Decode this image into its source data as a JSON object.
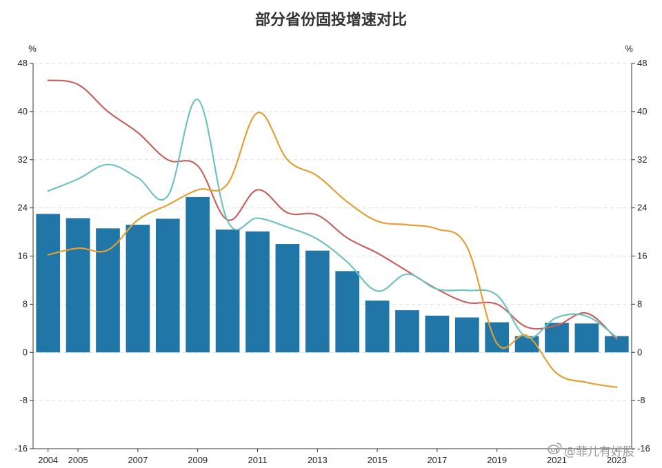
{
  "chart_data": {
    "type": "bar",
    "title": "部分省份固投增速对比",
    "y_unit_left": "%",
    "y_unit_right": "%",
    "ylim": [
      -16,
      48
    ],
    "yticks": [
      -16,
      -8,
      0,
      8,
      16,
      24,
      32,
      40,
      48
    ],
    "grid": true,
    "x": [
      2004,
      2005,
      2006,
      2007,
      2008,
      2009,
      2010,
      2011,
      2012,
      2013,
      2014,
      2015,
      2016,
      2017,
      2018,
      2019,
      2020,
      2021,
      2022,
      2023
    ],
    "x_tick_labels": [
      "2004",
      "2005",
      "2007",
      "2009",
      "2011",
      "2013",
      "2015",
      "2017",
      "2019",
      "2021",
      "2023"
    ],
    "series": [
      {
        "type": "bar",
        "color": "#2176a8",
        "values": [
          23.0,
          22.3,
          20.6,
          21.2,
          22.2,
          25.8,
          20.4,
          20.1,
          18.0,
          16.9,
          13.5,
          8.6,
          7.0,
          6.1,
          5.8,
          5.0,
          2.7,
          4.9,
          4.8,
          2.7
        ]
      },
      {
        "type": "line",
        "color": "#c8625e",
        "values": [
          45.2,
          44.5,
          40.0,
          36.5,
          32.0,
          31.0,
          22.0,
          27.0,
          23.2,
          22.8,
          19.0,
          16.5,
          13.5,
          10.5,
          8.3,
          8.0,
          4.2,
          4.5,
          6.5,
          2.2
        ]
      },
      {
        "type": "line",
        "color": "#6ec2c0",
        "values": [
          26.8,
          28.8,
          31.2,
          29.0,
          26.0,
          42.0,
          21.8,
          22.3,
          20.8,
          18.8,
          15.0,
          10.2,
          13.0,
          10.5,
          10.3,
          9.5,
          2.5,
          5.8,
          6.0,
          2.5
        ]
      },
      {
        "type": "line",
        "color": "#e2a033",
        "values": [
          16.2,
          17.3,
          17.0,
          22.0,
          24.5,
          27.0,
          28.0,
          39.8,
          32.0,
          29.3,
          25.0,
          21.8,
          21.2,
          20.5,
          17.5,
          1.5,
          2.8,
          -3.5,
          -5.0,
          -5.8
        ]
      }
    ]
  },
  "watermark": "@菲儿有好股"
}
